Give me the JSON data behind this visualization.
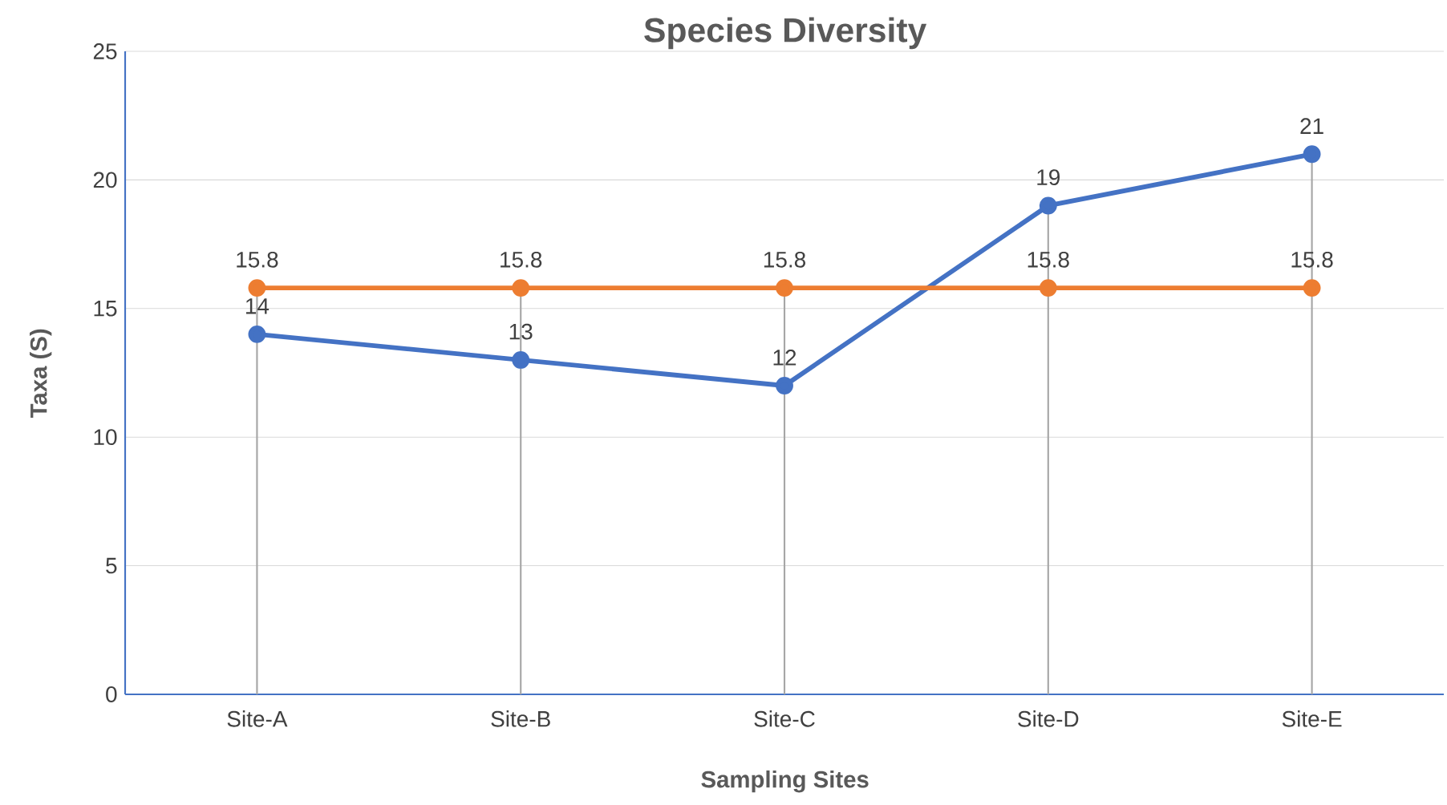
{
  "chart_data": {
    "type": "line",
    "title": "Species Diversity",
    "xlabel": "Sampling Sites",
    "ylabel": "Taxa (S)",
    "categories": [
      "Site-A",
      "Site-B",
      "Site-C",
      "Site-D",
      "Site-E"
    ],
    "series": [
      {
        "color": "#4472c4",
        "values": [
          14,
          13,
          12,
          19,
          21
        ]
      },
      {
        "color": "#ed7d31",
        "values": [
          15.8,
          15.8,
          15.8,
          15.8,
          15.8
        ]
      }
    ],
    "ylim": [
      0,
      25
    ],
    "yticks": [
      0,
      5,
      10,
      15,
      20,
      25
    ],
    "grid": "y",
    "marker": "circle",
    "line_style": "solid",
    "data_labels": true,
    "ref_lines": [
      {
        "axis": "x",
        "value": "Site-A",
        "color": "#a6a6a6"
      },
      {
        "axis": "x",
        "value": "Site-B",
        "color": "#a6a6a6"
      },
      {
        "axis": "x",
        "value": "Site-C",
        "color": "#a6a6a6"
      },
      {
        "axis": "x",
        "value": "Site-D",
        "color": "#a6a6a6"
      },
      {
        "axis": "x",
        "value": "Site-E",
        "color": "#a6a6a6"
      }
    ]
  }
}
